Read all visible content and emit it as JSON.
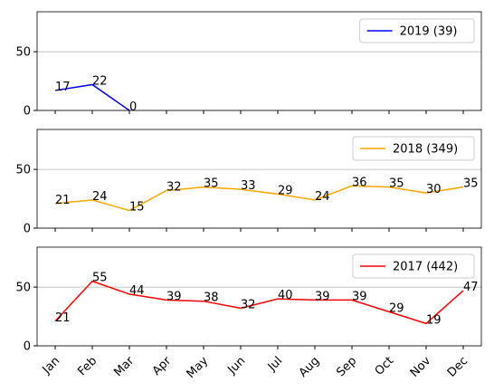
{
  "chart_data": {
    "type": "line",
    "categories": [
      "Jan",
      "Feb",
      "Mar",
      "Apr",
      "May",
      "Jun",
      "Jul",
      "Aug",
      "Sep",
      "Oct",
      "Nov",
      "Dec"
    ],
    "series": [
      {
        "name": "2019 (39)",
        "color": "#0000ff",
        "values": [
          17,
          22,
          0,
          null,
          null,
          null,
          null,
          null,
          null,
          null,
          null,
          null
        ]
      },
      {
        "name": "2018 (349)",
        "color": "#ffa500",
        "values": [
          21,
          24,
          15,
          32,
          35,
          33,
          29,
          24,
          36,
          35,
          30,
          35
        ]
      },
      {
        "name": "2017 (442)",
        "color": "#ff0000",
        "values": [
          21,
          55,
          44,
          39,
          38,
          32,
          40,
          39,
          39,
          29,
          19,
          47
        ]
      }
    ],
    "ylim": [
      0,
      84
    ],
    "yticks": [
      0,
      50
    ],
    "grid": true,
    "legend": "upper right"
  }
}
